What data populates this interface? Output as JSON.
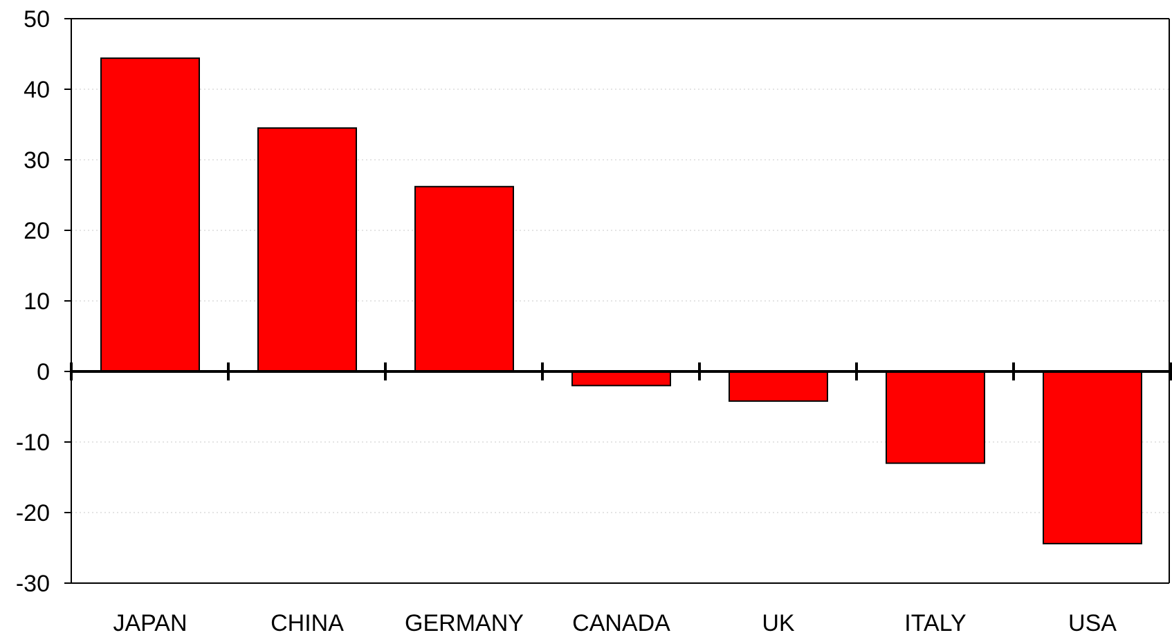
{
  "chart_data": {
    "type": "bar",
    "title": "",
    "xlabel": "",
    "ylabel": "",
    "categories": [
      "JAPAN",
      "CHINA",
      "GERMANY",
      "CANADA",
      "UK",
      "ITALY",
      "USA"
    ],
    "values": [
      44.4,
      34.5,
      26.2,
      -2.0,
      -4.2,
      -13.0,
      -24.4
    ],
    "ylim": [
      -30,
      50
    ],
    "yticks": [
      50,
      40,
      30,
      20,
      10,
      0,
      -10,
      -20,
      -30
    ],
    "ytick_labels": [
      "50",
      "40",
      "30",
      "20",
      "10",
      "0",
      "-10",
      "-20",
      "-30"
    ],
    "grid": "horizontal dotted",
    "legend": "none",
    "colors": {
      "bar_fill": "#ff0000",
      "bar_stroke": "#000000",
      "axis": "#000000",
      "grid": "#c8c8c8"
    }
  }
}
